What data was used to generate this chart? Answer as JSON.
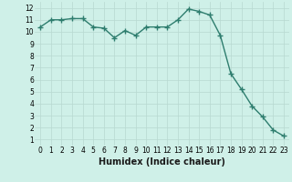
{
  "x": [
    0,
    1,
    2,
    3,
    4,
    5,
    6,
    7,
    8,
    9,
    10,
    11,
    12,
    13,
    14,
    15,
    16,
    17,
    18,
    19,
    20,
    21,
    22,
    23
  ],
  "y": [
    10.4,
    11.0,
    11.0,
    11.1,
    11.1,
    10.4,
    10.3,
    9.5,
    10.1,
    9.7,
    10.4,
    10.4,
    10.4,
    11.0,
    11.9,
    11.7,
    11.4,
    9.7,
    6.5,
    5.2,
    3.8,
    2.9,
    1.8,
    1.3
  ],
  "line_color": "#2e7d6e",
  "marker": "D",
  "marker_size": 2.2,
  "bg_color": "#cff0e8",
  "grid_color": "#b8d8d0",
  "xlabel": "Humidex (Indice chaleur)",
  "xlim": [
    -0.5,
    23.5
  ],
  "ylim": [
    0.5,
    12.5
  ],
  "xticks": [
    0,
    1,
    2,
    3,
    4,
    5,
    6,
    7,
    8,
    9,
    10,
    11,
    12,
    13,
    14,
    15,
    16,
    17,
    18,
    19,
    20,
    21,
    22,
    23
  ],
  "yticks": [
    1,
    2,
    3,
    4,
    5,
    6,
    7,
    8,
    9,
    10,
    11,
    12
  ],
  "tick_fontsize": 5.5,
  "xlabel_fontsize": 7,
  "line_width": 1.0
}
